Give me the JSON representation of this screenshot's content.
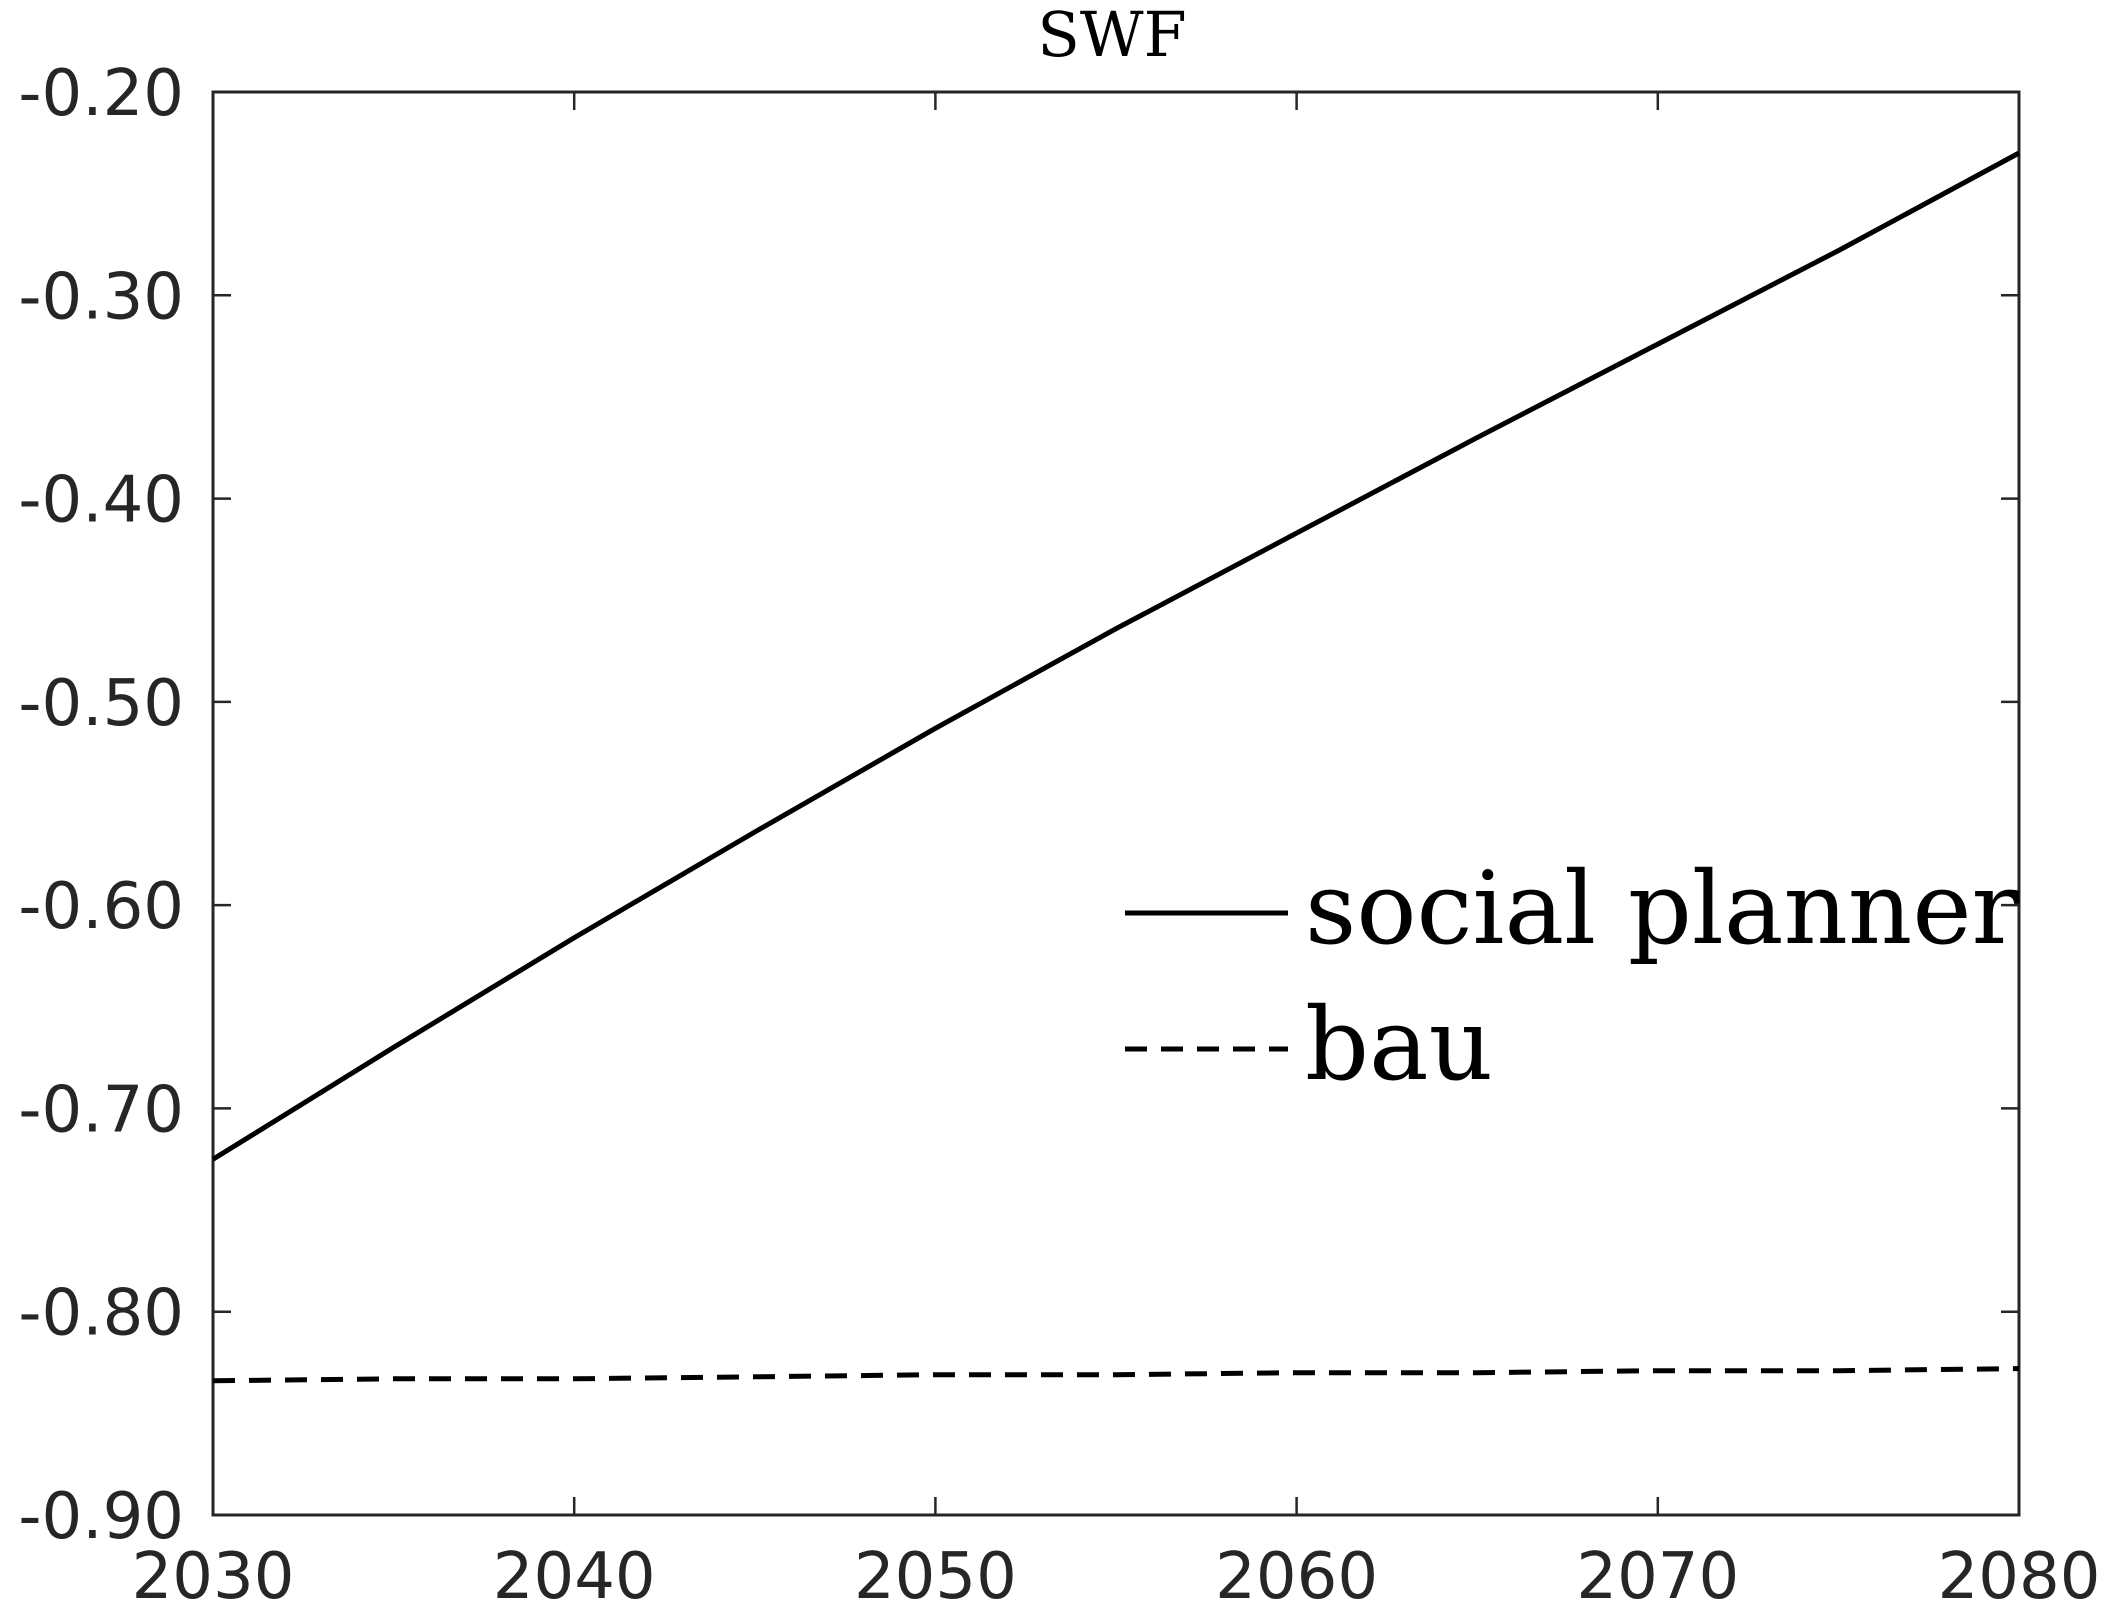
{
  "chart_data": {
    "type": "line",
    "title": "SWF",
    "xlabel": "",
    "ylabel": "",
    "xlim": [
      2030,
      2080
    ],
    "ylim": [
      -0.9,
      -0.2
    ],
    "x_ticks": [
      2030,
      2040,
      2050,
      2060,
      2070,
      2080
    ],
    "x_tick_labels": [
      "2030",
      "2040",
      "2050",
      "2060",
      "2070",
      "2080"
    ],
    "y_ticks": [
      -0.2,
      -0.3,
      -0.4,
      -0.5,
      -0.6,
      -0.7,
      -0.8,
      -0.9
    ],
    "y_tick_labels": [
      "-0.20",
      "-0.30",
      "-0.40",
      "-0.50",
      "-0.60",
      "-0.70",
      "-0.80",
      "-0.90"
    ],
    "grid": false,
    "legend_position": "right",
    "x": [
      2030,
      2035,
      2040,
      2045,
      2050,
      2055,
      2060,
      2065,
      2070,
      2075,
      2080
    ],
    "series": [
      {
        "name": "social planner",
        "line_style": "solid",
        "color": "#000000",
        "values": [
          -0.725,
          -0.67,
          -0.616,
          -0.564,
          -0.513,
          -0.464,
          -0.417,
          -0.37,
          -0.324,
          -0.278,
          -0.23
        ]
      },
      {
        "name": "bau",
        "line_style": "dashed",
        "color": "#000000",
        "values": [
          -0.834,
          -0.833,
          -0.833,
          -0.832,
          -0.831,
          -0.831,
          -0.83,
          -0.83,
          -0.829,
          -0.829,
          -0.828
        ]
      }
    ]
  }
}
